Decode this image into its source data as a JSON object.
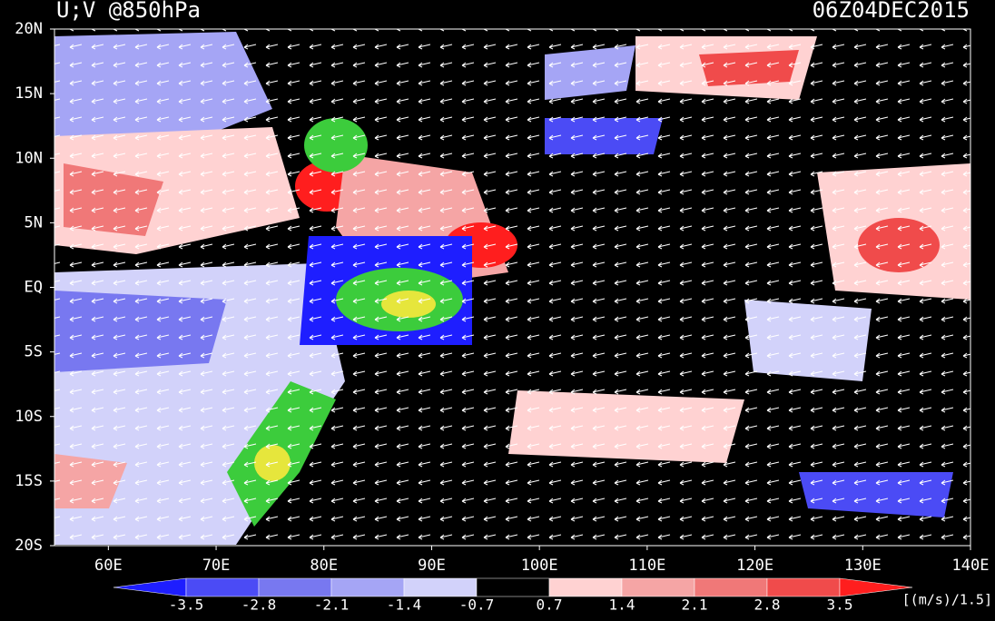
{
  "header": {
    "title": "U;V @850hPa",
    "time": "06Z04DEC2015"
  },
  "map": {
    "lon_range": [
      55,
      140
    ],
    "lat_range": [
      -20,
      20
    ],
    "lon_labels": [
      {
        "value": 60,
        "label": "60E"
      },
      {
        "value": 70,
        "label": "70E"
      },
      {
        "value": 80,
        "label": "80E"
      },
      {
        "value": 90,
        "label": "90E"
      },
      {
        "value": 100,
        "label": "100E"
      },
      {
        "value": 110,
        "label": "110E"
      },
      {
        "value": 120,
        "label": "120E"
      },
      {
        "value": 130,
        "label": "130E"
      },
      {
        "value": 140,
        "label": "140E"
      }
    ],
    "lat_labels": [
      {
        "value": 20,
        "label": "20N"
      },
      {
        "value": 15,
        "label": "15N"
      },
      {
        "value": 10,
        "label": "10N"
      },
      {
        "value": 5,
        "label": "5N"
      },
      {
        "value": 0,
        "label": "EQ"
      },
      {
        "value": -5,
        "label": "5S"
      },
      {
        "value": -10,
        "label": "10S"
      },
      {
        "value": -15,
        "label": "15S"
      },
      {
        "value": -20,
        "label": "20S"
      }
    ]
  },
  "colorbar": {
    "labels": [
      "-3.5",
      "-2.8",
      "-2.1",
      "-1.4",
      "-0.7",
      "0.7",
      "1.4",
      "2.1",
      "2.8",
      "3.5"
    ],
    "colors": [
      "#1e1eff",
      "#4b4bf5",
      "#7878f0",
      "#a5a5f5",
      "#d2d2fa",
      "#000000",
      "#ffd2d2",
      "#f5a5a5",
      "#f07878",
      "#f04b4b",
      "#ff1e1e"
    ],
    "unit": "[(m/s)/1.5]"
  }
}
